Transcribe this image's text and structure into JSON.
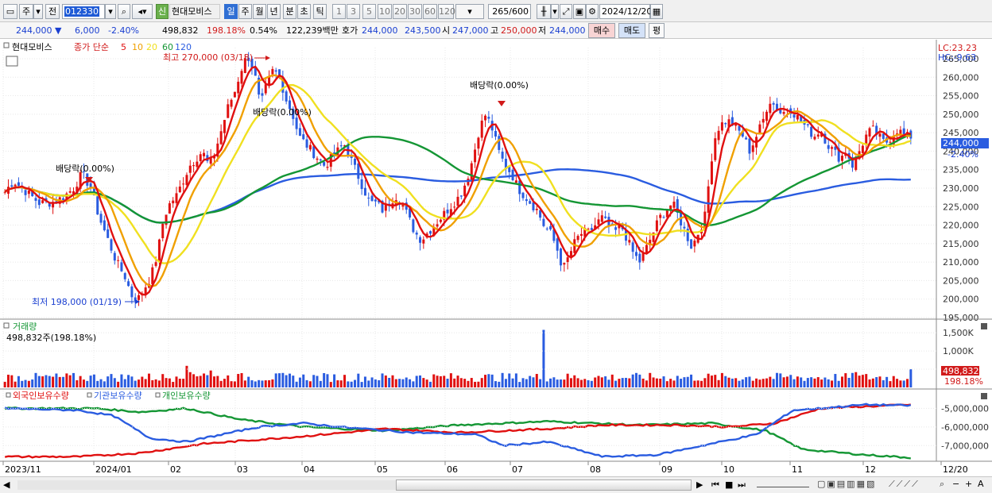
{
  "toolbar": {
    "period_primary": "주",
    "jeon_label": "전",
    "code": "012330",
    "credit_badge": "신",
    "stock_name": "현대모비스",
    "period_tabs": [
      "일",
      "주",
      "월",
      "년",
      "분",
      "초",
      "틱"
    ],
    "minute_tabs": [
      "1",
      "3",
      "5",
      "10",
      "20",
      "30",
      "60",
      "120"
    ],
    "count_value": "265",
    "count_total": "/600",
    "date_value": "2024/12/20"
  },
  "quote": {
    "price": "244,000",
    "change": "6,000",
    "rate": "-2.40%",
    "volume": "498,832",
    "volume_ratio": "198.18%",
    "turnover": "0.54%",
    "trade_value": "122,239백만",
    "ask_label": "호가",
    "ask_value": "244,000",
    "bid_value": "243,500",
    "open_label": "시",
    "open_value": "247,000",
    "high_label": "고",
    "high_value": "250,000",
    "low_label": "저",
    "low_value": "244,000",
    "buy_button": "매수",
    "sell_button": "매도",
    "eval_button": "평"
  },
  "legend": {
    "stock_name": "현대모비스",
    "ma_prefix": "종가 단순",
    "ma_periods": [
      "5",
      "10",
      "20",
      "60",
      "120"
    ],
    "ma_colors": [
      "#e01010",
      "#f0a000",
      "#f0e020",
      "#149634",
      "#2a5ce0"
    ]
  },
  "right_labels": {
    "lc": "LC:23.23",
    "hc": "HC:-9.63"
  },
  "annotations": {
    "high": "최고 270,000 (03/18)",
    "low": "최저 198,000 (01/19)",
    "dividends": [
      "배당락(0.00%)",
      "배당락(0.00%)",
      "배당락(0.00%)"
    ]
  },
  "volume_panel": {
    "title": "거래량",
    "current": "498,832주(198.18%)",
    "axis_labels": [
      "1,500K",
      "1,000K",
      "500K"
    ],
    "badge_value": "498,832",
    "badge_ratio": "198.18%"
  },
  "holding_panel": {
    "legend": [
      "외국인보유수량",
      "기관보유수량",
      "개인보유수량"
    ],
    "colors": [
      "#e01010",
      "#2a5ce0",
      "#149634"
    ],
    "axis_labels": [
      "-5,000,000",
      "-6,000,000",
      "-7,000,000"
    ]
  },
  "x_labels": [
    "2023/11",
    "2024/01",
    "02",
    "03",
    "04",
    "05",
    "06",
    "07",
    "08",
    "09",
    "10",
    "11",
    "12",
    "12/20"
  ],
  "chart_data": {
    "type": "candlestick",
    "yrange": [
      195000,
      268000
    ],
    "yticks": [
      195000,
      200000,
      205000,
      210000,
      215000,
      220000,
      225000,
      230000,
      235000,
      240000,
      245000,
      250000,
      255000,
      260000,
      265000
    ],
    "ytick_labels": [
      "195,000",
      "200,000",
      "205,000",
      "210,000",
      "215,000",
      "220,000",
      "225,000",
      "230,000",
      "235,000",
      "240,000",
      "245,000",
      "250,000",
      "255,000",
      "260,000",
      "265,000"
    ],
    "current_price_label": "244,000",
    "current_rate_label": "-2.40%",
    "high": 270000,
    "low": 198000,
    "close_anchors": [
      [
        0,
        229000
      ],
      [
        8,
        232000
      ],
      [
        16,
        230000
      ],
      [
        24,
        228000
      ],
      [
        32,
        226000
      ],
      [
        40,
        226000
      ],
      [
        48,
        226500
      ],
      [
        56,
        228000
      ],
      [
        64,
        230000
      ],
      [
        72,
        234000
      ],
      [
        80,
        230000
      ],
      [
        88,
        222000
      ],
      [
        96,
        216000
      ],
      [
        104,
        210000
      ],
      [
        112,
        206000
      ],
      [
        118,
        201000
      ],
      [
        124,
        200000
      ],
      [
        130,
        203000
      ],
      [
        136,
        206000
      ],
      [
        142,
        212000
      ],
      [
        148,
        222000
      ],
      [
        154,
        226000
      ],
      [
        160,
        228000
      ],
      [
        166,
        232000
      ],
      [
        172,
        236000
      ],
      [
        178,
        238000
      ],
      [
        184,
        240000
      ],
      [
        190,
        236000
      ],
      [
        196,
        240000
      ],
      [
        202,
        246000
      ],
      [
        208,
        252000
      ],
      [
        214,
        256000
      ],
      [
        220,
        262000
      ],
      [
        226,
        266000
      ],
      [
        232,
        262000
      ],
      [
        238,
        252000
      ],
      [
        244,
        258000
      ],
      [
        250,
        262000
      ],
      [
        256,
        260000
      ],
      [
        262,
        254000
      ],
      [
        268,
        250000
      ],
      [
        274,
        244000
      ],
      [
        280,
        242000
      ],
      [
        286,
        240000
      ],
      [
        292,
        238000
      ],
      [
        298,
        236000
      ],
      [
        304,
        238000
      ],
      [
        310,
        240000
      ],
      [
        316,
        242000
      ],
      [
        322,
        238000
      ],
      [
        328,
        234000
      ],
      [
        334,
        230000
      ],
      [
        340,
        226000
      ],
      [
        346,
        226000
      ],
      [
        352,
        224000
      ],
      [
        358,
        226000
      ],
      [
        364,
        228000
      ],
      [
        370,
        226000
      ],
      [
        376,
        222000
      ],
      [
        382,
        218000
      ],
      [
        388,
        216000
      ],
      [
        394,
        218000
      ],
      [
        400,
        220000
      ],
      [
        406,
        222000
      ],
      [
        412,
        224000
      ],
      [
        418,
        226000
      ],
      [
        424,
        228000
      ],
      [
        430,
        232000
      ],
      [
        436,
        238000
      ],
      [
        442,
        246000
      ],
      [
        448,
        250000
      ],
      [
        454,
        246000
      ],
      [
        460,
        240000
      ],
      [
        466,
        236000
      ],
      [
        472,
        234000
      ],
      [
        478,
        230000
      ],
      [
        484,
        228000
      ],
      [
        490,
        226000
      ],
      [
        496,
        224000
      ],
      [
        502,
        220000
      ],
      [
        508,
        218000
      ],
      [
        514,
        214000
      ],
      [
        520,
        208000
      ],
      [
        526,
        212000
      ],
      [
        532,
        216000
      ],
      [
        538,
        218000
      ],
      [
        544,
        218000
      ],
      [
        550,
        220000
      ],
      [
        556,
        222000
      ],
      [
        562,
        220000
      ],
      [
        568,
        218000
      ],
      [
        574,
        220000
      ],
      [
        580,
        216000
      ],
      [
        586,
        212000
      ],
      [
        592,
        210000
      ],
      [
        598,
        214000
      ],
      [
        604,
        218000
      ],
      [
        610,
        222000
      ],
      [
        616,
        224000
      ],
      [
        622,
        226000
      ],
      [
        628,
        222000
      ],
      [
        634,
        218000
      ],
      [
        640,
        214000
      ],
      [
        646,
        218000
      ],
      [
        652,
        222000
      ],
      [
        656,
        232000
      ],
      [
        660,
        242000
      ],
      [
        664,
        246000
      ],
      [
        670,
        248000
      ],
      [
        676,
        248000
      ],
      [
        682,
        246000
      ],
      [
        688,
        244000
      ],
      [
        694,
        240000
      ],
      [
        700,
        244000
      ],
      [
        706,
        248000
      ],
      [
        712,
        254000
      ],
      [
        718,
        252000
      ],
      [
        724,
        250000
      ],
      [
        730,
        252000
      ],
      [
        736,
        250000
      ],
      [
        742,
        248000
      ],
      [
        748,
        246000
      ],
      [
        754,
        244000
      ],
      [
        760,
        246000
      ],
      [
        766,
        242000
      ],
      [
        772,
        240000
      ],
      [
        778,
        238000
      ],
      [
        784,
        240000
      ],
      [
        790,
        236000
      ],
      [
        796,
        240000
      ],
      [
        802,
        244000
      ],
      [
        808,
        246000
      ],
      [
        814,
        244000
      ],
      [
        820,
        242000
      ],
      [
        826,
        244000
      ],
      [
        832,
        246000
      ],
      [
        838,
        244000
      ],
      [
        844,
        244000
      ]
    ],
    "total_candles": 265
  }
}
